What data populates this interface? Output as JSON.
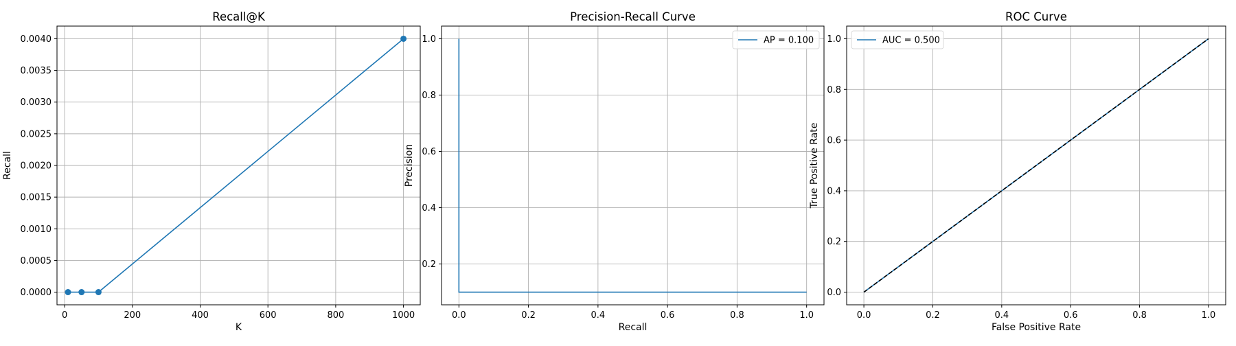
{
  "chart_data": [
    {
      "type": "line",
      "title": "Recall@K",
      "xlabel": "K",
      "ylabel": "Recall",
      "xlim": [
        -22.45,
        1049.45
      ],
      "ylim": [
        -0.0002,
        0.0042
      ],
      "xticks": [
        0,
        200,
        400,
        600,
        800,
        1000
      ],
      "xtick_labels": [
        "0",
        "200",
        "400",
        "600",
        "800",
        "1000"
      ],
      "yticks": [
        0,
        0.0005,
        0.001,
        0.0015,
        0.002,
        0.0025,
        0.003,
        0.0035,
        0.004
      ],
      "ytick_labels": [
        "0.0000",
        "0.0005",
        "0.0010",
        "0.0015",
        "0.0020",
        "0.0025",
        "0.0030",
        "0.0035",
        "0.0040"
      ],
      "grid": true,
      "legend": null,
      "series": [
        {
          "color": "#1f77b4",
          "marker": "circle",
          "style": "solid",
          "x": [
            10,
            50,
            100,
            1000
          ],
          "y": [
            0,
            0,
            0,
            0.004
          ]
        }
      ]
    },
    {
      "type": "line",
      "title": "Precision-Recall Curve",
      "xlabel": "Recall",
      "ylabel": "Precision",
      "xlim": [
        -0.05,
        1.05
      ],
      "ylim": [
        0.055,
        1.045
      ],
      "xticks": [
        0,
        0.2,
        0.4,
        0.6,
        0.8,
        1.0
      ],
      "xtick_labels": [
        "0.0",
        "0.2",
        "0.4",
        "0.6",
        "0.8",
        "1.0"
      ],
      "yticks": [
        0.2,
        0.4,
        0.6,
        0.8,
        1.0
      ],
      "ytick_labels": [
        "0.2",
        "0.4",
        "0.6",
        "0.8",
        "1.0"
      ],
      "grid": true,
      "legend": {
        "position": "upper right",
        "entries": [
          "AP = 0.100"
        ]
      },
      "series": [
        {
          "name": "AP = 0.100",
          "color": "#1f77b4",
          "marker": "none",
          "style": "solid",
          "x": [
            0,
            0,
            1.0
          ],
          "y": [
            1.0,
            0.1,
            0.1
          ]
        }
      ]
    },
    {
      "type": "line",
      "title": "ROC Curve",
      "xlabel": "False Positive Rate",
      "ylabel": "True Positive Rate",
      "xlim": [
        -0.05,
        1.05
      ],
      "ylim": [
        -0.05,
        1.05
      ],
      "xticks": [
        0,
        0.2,
        0.4,
        0.6,
        0.8,
        1.0
      ],
      "xtick_labels": [
        "0.0",
        "0.2",
        "0.4",
        "0.6",
        "0.8",
        "1.0"
      ],
      "yticks": [
        0,
        0.2,
        0.4,
        0.6,
        0.8,
        1.0
      ],
      "ytick_labels": [
        "0.0",
        "0.2",
        "0.4",
        "0.6",
        "0.8",
        "1.0"
      ],
      "grid": true,
      "legend": {
        "position": "upper left",
        "entries": [
          "AUC = 0.500"
        ]
      },
      "series": [
        {
          "name": "AUC = 0.500",
          "color": "#1f77b4",
          "marker": "none",
          "style": "solid",
          "x": [
            0,
            1
          ],
          "y": [
            0,
            1
          ]
        },
        {
          "color": "#000000",
          "marker": "none",
          "style": "dashed",
          "x": [
            0,
            1
          ],
          "y": [
            0,
            1
          ]
        }
      ]
    }
  ]
}
